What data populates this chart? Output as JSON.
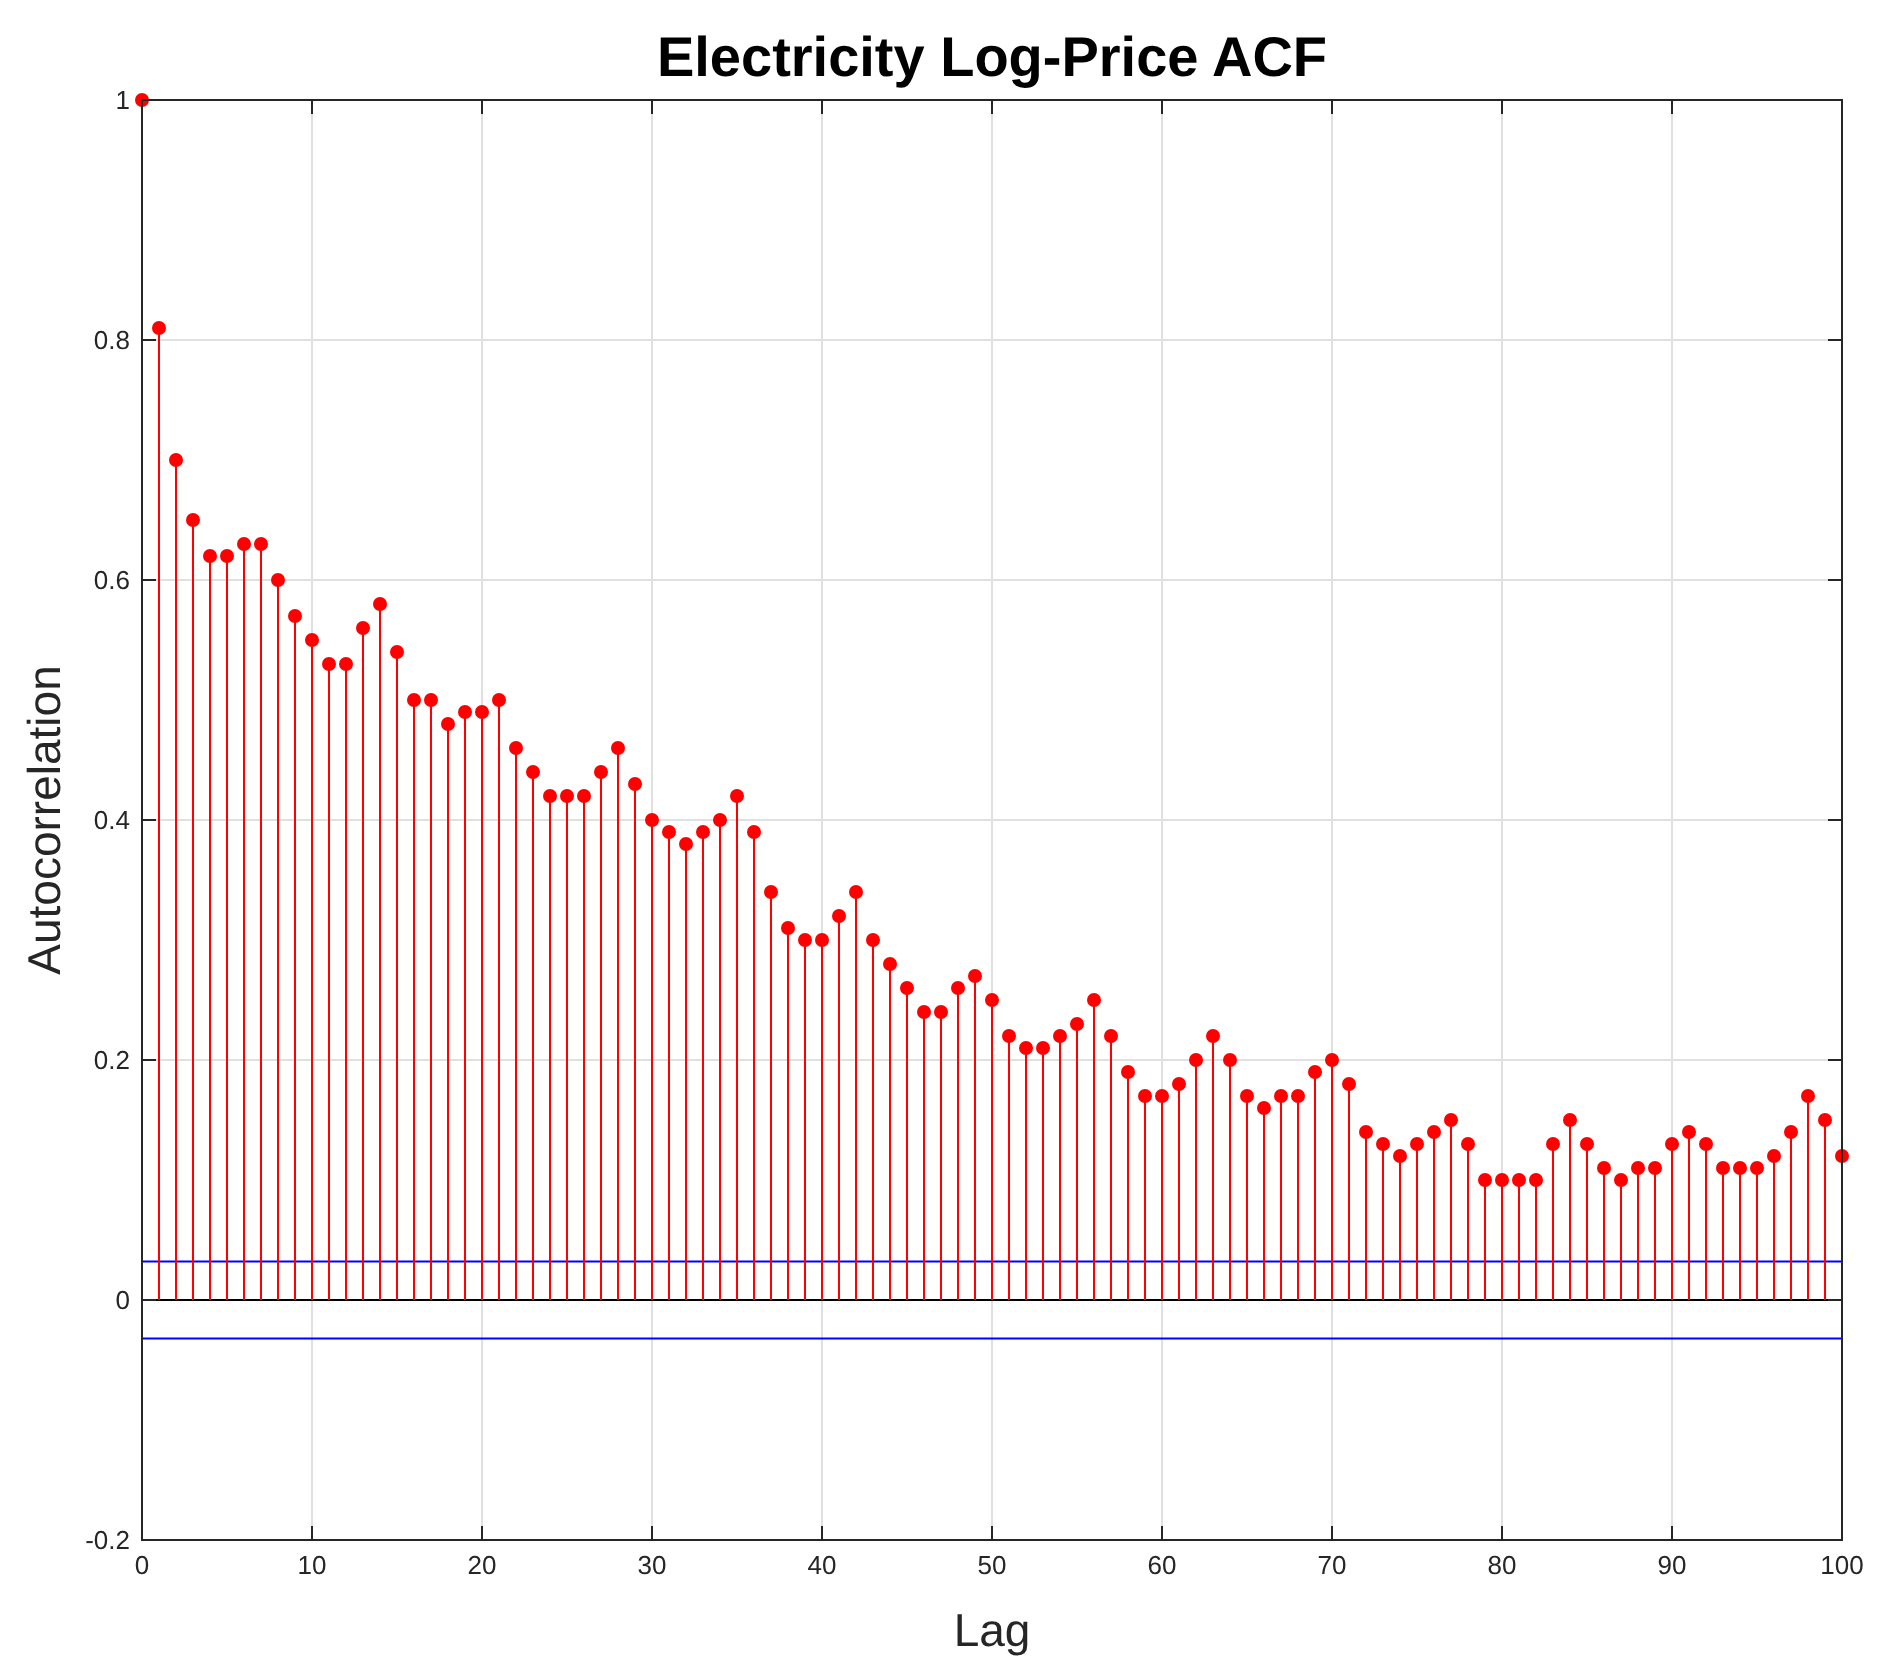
{
  "chart_data": {
    "type": "lollipop",
    "title": "Electricity Log-Price ACF",
    "xlabel": "Lag",
    "ylabel": "Autocorrelation",
    "x": [
      0,
      1,
      2,
      3,
      4,
      5,
      6,
      7,
      8,
      9,
      10,
      11,
      12,
      13,
      14,
      15,
      16,
      17,
      18,
      19,
      20,
      21,
      22,
      23,
      24,
      25,
      26,
      27,
      28,
      29,
      30,
      31,
      32,
      33,
      34,
      35,
      36,
      37,
      38,
      39,
      40,
      41,
      42,
      43,
      44,
      45,
      46,
      47,
      48,
      49,
      50,
      51,
      52,
      53,
      54,
      55,
      56,
      57,
      58,
      59,
      60,
      61,
      62,
      63,
      64,
      65,
      66,
      67,
      68,
      69,
      70,
      71,
      72,
      73,
      74,
      75,
      76,
      77,
      78,
      79,
      80,
      81,
      82,
      83,
      84,
      85,
      86,
      87,
      88,
      89,
      90,
      91,
      92,
      93,
      94,
      95,
      96,
      97,
      98,
      99,
      100
    ],
    "series": [
      {
        "color": "#ff0000",
        "values": [
          1,
          0.81,
          0.7,
          0.65,
          0.62,
          0.62,
          0.63,
          0.63,
          0.6,
          0.57,
          0.55,
          0.53,
          0.53,
          0.56,
          0.58,
          0.54,
          0.5,
          0.5,
          0.48,
          0.49,
          0.49,
          0.5,
          0.46,
          0.44,
          0.42,
          0.42,
          0.42,
          0.44,
          0.46,
          0.43,
          0.4,
          0.39,
          0.38,
          0.39,
          0.4,
          0.42,
          0.39,
          0.34,
          0.31,
          0.3,
          0.3,
          0.32,
          0.34,
          0.3,
          0.28,
          0.26,
          0.24,
          0.24,
          0.26,
          0.27,
          0.25,
          0.22,
          0.21,
          0.21,
          0.22,
          0.23,
          0.25,
          0.22,
          0.19,
          0.17,
          0.17,
          0.18,
          0.2,
          0.22,
          0.2,
          0.17,
          0.16,
          0.17,
          0.17,
          0.19,
          0.2,
          0.18,
          0.14,
          0.13,
          0.12,
          0.13,
          0.14,
          0.15,
          0.13,
          0.1,
          0.1,
          0.1,
          0.1,
          0.13,
          0.15,
          0.13,
          0.11,
          0.1,
          0.11,
          0.11,
          0.13,
          0.14,
          0.13,
          0.11,
          0.11,
          0.11,
          0.12,
          0.14,
          0.17,
          0.15,
          0.12
        ]
      }
    ],
    "xlim": [
      0,
      100
    ],
    "xticks": [
      0,
      10,
      20,
      30,
      40,
      50,
      60,
      70,
      80,
      90,
      100
    ],
    "ylim": [
      -0.2,
      1
    ],
    "yticks": [
      -0.2,
      0,
      0.2,
      0.4,
      0.6,
      0.8,
      1
    ],
    "ref_lines": [
      {
        "axis": "y",
        "value": 0.032,
        "color": "#0000ff"
      },
      {
        "axis": "y",
        "value": -0.032,
        "color": "#0000ff"
      }
    ],
    "grid": true,
    "marker": "circle"
  }
}
